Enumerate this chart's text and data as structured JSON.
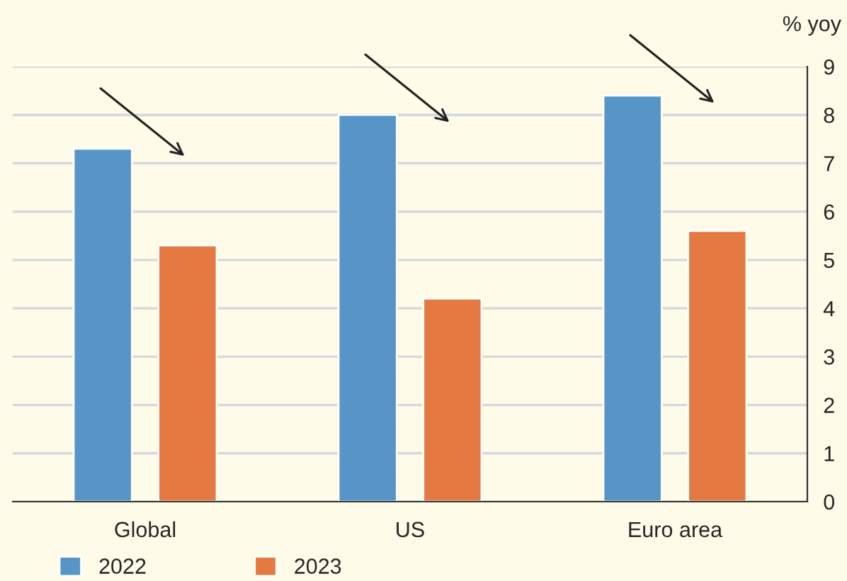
{
  "chart_data": {
    "type": "bar",
    "ylabel": "% yoy",
    "categories": [
      "Global",
      "US",
      "Euro area"
    ],
    "series": [
      {
        "name": "2022",
        "color": "#5795c9",
        "values": [
          7.3,
          8.0,
          8.4
        ]
      },
      {
        "name": "2023",
        "color": "#e57942",
        "values": [
          5.3,
          4.2,
          5.6
        ]
      }
    ],
    "ylim": [
      0,
      9
    ],
    "yticks": [
      0,
      1,
      2,
      3,
      4,
      5,
      6,
      7,
      8,
      9
    ],
    "grid": "y",
    "legend": "bottom left"
  }
}
